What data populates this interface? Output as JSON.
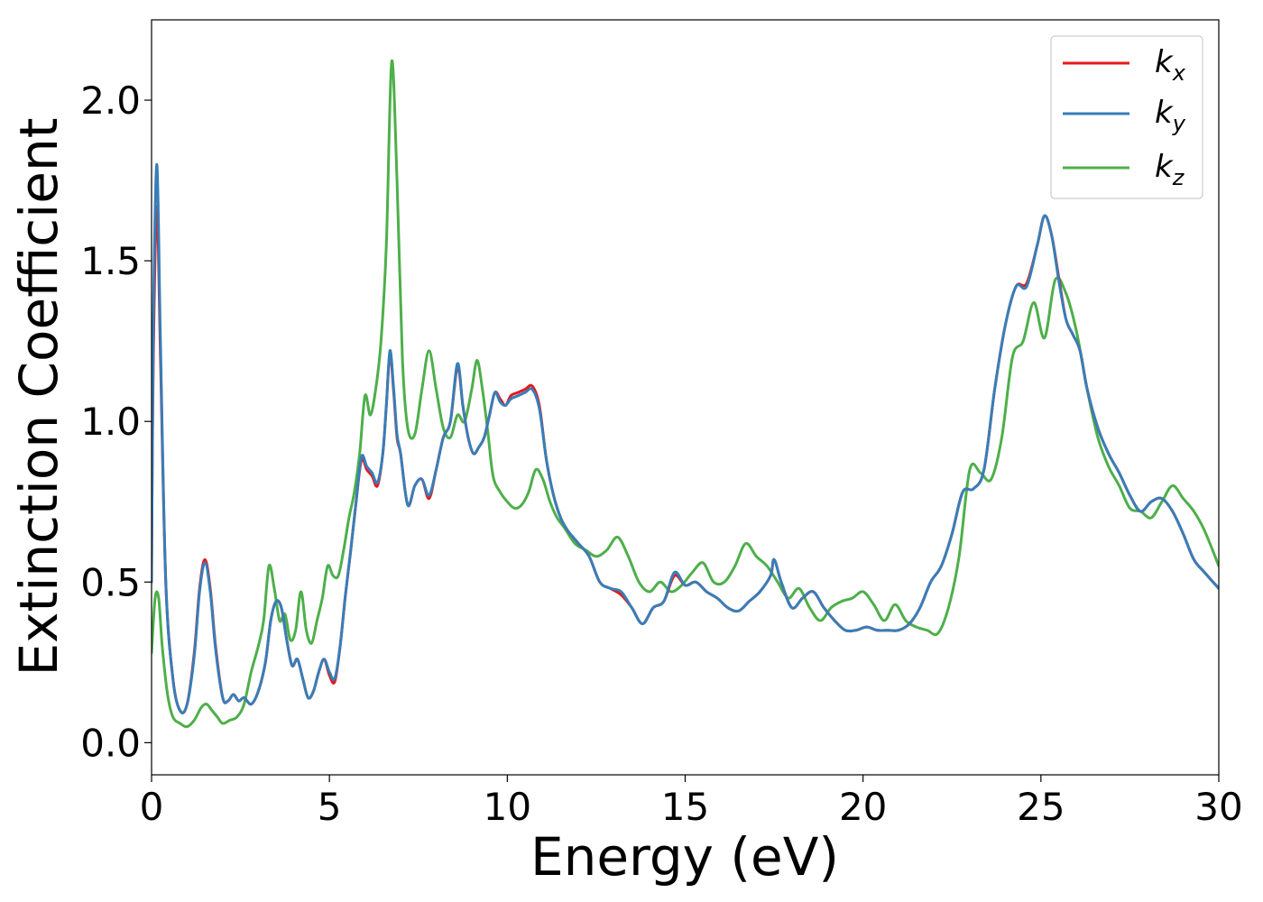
{
  "chart_data": {
    "type": "line",
    "xlabel": "Energy (eV)",
    "ylabel": "Extinction Coefficient",
    "xlim": [
      0,
      30
    ],
    "ylim": [
      -0.1,
      2.25
    ],
    "xticks": [
      0,
      5,
      10,
      15,
      20,
      25,
      30
    ],
    "xtick_labels": [
      "0",
      "5",
      "10",
      "15",
      "20",
      "25",
      "30"
    ],
    "yticks": [
      0.0,
      0.5,
      1.0,
      1.5,
      2.0
    ],
    "ytick_labels": [
      "0.0",
      "0.5",
      "1.0",
      "1.5",
      "2.0"
    ],
    "grid": false,
    "legend_position": "top-right",
    "series": [
      {
        "name": "k_x",
        "label_main": "k",
        "label_sub": "x",
        "color": "#e41a1c",
        "x": [
          0,
          0.05,
          0.15,
          0.25,
          0.4,
          0.6,
          0.8,
          1.0,
          1.2,
          1.35,
          1.5,
          1.65,
          1.8,
          2.0,
          2.15,
          2.3,
          2.45,
          2.6,
          2.8,
          3.0,
          3.2,
          3.35,
          3.5,
          3.65,
          3.8,
          3.95,
          4.1,
          4.25,
          4.4,
          4.55,
          4.7,
          4.85,
          5.0,
          5.15,
          5.3,
          5.45,
          5.6,
          5.75,
          5.9,
          6.05,
          6.2,
          6.35,
          6.5,
          6.6,
          6.7,
          6.8,
          6.9,
          7.0,
          7.2,
          7.4,
          7.6,
          7.8,
          8.0,
          8.2,
          8.4,
          8.6,
          8.75,
          8.9,
          9.05,
          9.2,
          9.35,
          9.5,
          9.65,
          9.8,
          9.95,
          10.1,
          10.3,
          10.5,
          10.7,
          10.9,
          11.1,
          11.3,
          11.5,
          11.7,
          12.0,
          12.3,
          12.6,
          12.9,
          13.2,
          13.5,
          13.8,
          14.1,
          14.4,
          14.7,
          15.0,
          15.3,
          15.6,
          15.9,
          16.2,
          16.5,
          16.8,
          17.1,
          17.4,
          17.5,
          17.7,
          18.0,
          18.3,
          18.6,
          18.9,
          19.2,
          19.5,
          19.8,
          20.1,
          20.4,
          20.7,
          21.0,
          21.3,
          21.6,
          21.9,
          22.2,
          22.5,
          22.8,
          23.1,
          23.4,
          23.7,
          24.0,
          24.3,
          24.6,
          24.9,
          25.1,
          25.3,
          25.5,
          25.7,
          25.9,
          26.1,
          26.3,
          26.6,
          26.9,
          27.2,
          27.5,
          27.8,
          28.1,
          28.4,
          28.7,
          29.0,
          29.3,
          29.6,
          30.0
        ],
        "y": [
          0.55,
          1.2,
          1.67,
          1.2,
          0.5,
          0.2,
          0.1,
          0.12,
          0.28,
          0.48,
          0.57,
          0.48,
          0.3,
          0.14,
          0.13,
          0.15,
          0.13,
          0.14,
          0.12,
          0.16,
          0.25,
          0.38,
          0.44,
          0.42,
          0.32,
          0.24,
          0.26,
          0.2,
          0.14,
          0.16,
          0.22,
          0.26,
          0.21,
          0.19,
          0.3,
          0.46,
          0.6,
          0.75,
          0.88,
          0.85,
          0.83,
          0.8,
          0.9,
          1.05,
          1.21,
          1.1,
          0.95,
          0.9,
          0.74,
          0.8,
          0.82,
          0.76,
          0.85,
          0.95,
          1.0,
          1.17,
          1.05,
          0.95,
          0.9,
          0.92,
          0.95,
          1.02,
          1.09,
          1.07,
          1.05,
          1.08,
          1.09,
          1.1,
          1.11,
          1.05,
          0.88,
          0.77,
          0.7,
          0.66,
          0.62,
          0.58,
          0.5,
          0.48,
          0.46,
          0.42,
          0.37,
          0.42,
          0.44,
          0.52,
          0.49,
          0.5,
          0.47,
          0.45,
          0.42,
          0.41,
          0.44,
          0.47,
          0.52,
          0.57,
          0.5,
          0.42,
          0.45,
          0.47,
          0.42,
          0.38,
          0.35,
          0.35,
          0.36,
          0.35,
          0.35,
          0.35,
          0.37,
          0.42,
          0.5,
          0.55,
          0.65,
          0.78,
          0.79,
          0.85,
          1.1,
          1.3,
          1.42,
          1.43,
          1.55,
          1.64,
          1.58,
          1.45,
          1.32,
          1.27,
          1.22,
          1.1,
          0.98,
          0.9,
          0.84,
          0.77,
          0.72,
          0.75,
          0.76,
          0.72,
          0.65,
          0.57,
          0.53,
          0.48
        ]
      },
      {
        "name": "k_y",
        "label_main": "k",
        "label_sub": "y",
        "color": "#377eb8",
        "x": [
          0,
          0.05,
          0.15,
          0.25,
          0.4,
          0.6,
          0.8,
          1.0,
          1.2,
          1.35,
          1.5,
          1.65,
          1.8,
          2.0,
          2.15,
          2.3,
          2.45,
          2.6,
          2.8,
          3.0,
          3.2,
          3.35,
          3.5,
          3.65,
          3.8,
          3.95,
          4.1,
          4.25,
          4.4,
          4.55,
          4.7,
          4.85,
          5.0,
          5.15,
          5.3,
          5.45,
          5.6,
          5.75,
          5.9,
          6.05,
          6.2,
          6.35,
          6.5,
          6.6,
          6.7,
          6.8,
          6.9,
          7.0,
          7.2,
          7.4,
          7.6,
          7.8,
          8.0,
          8.2,
          8.4,
          8.6,
          8.75,
          8.9,
          9.05,
          9.2,
          9.35,
          9.5,
          9.65,
          9.8,
          9.95,
          10.1,
          10.3,
          10.5,
          10.7,
          10.9,
          11.1,
          11.3,
          11.5,
          11.7,
          12.0,
          12.3,
          12.6,
          12.9,
          13.2,
          13.5,
          13.8,
          14.1,
          14.4,
          14.7,
          15.0,
          15.3,
          15.6,
          15.9,
          16.2,
          16.5,
          16.8,
          17.1,
          17.4,
          17.5,
          17.7,
          18.0,
          18.3,
          18.6,
          18.9,
          19.2,
          19.5,
          19.8,
          20.1,
          20.4,
          20.7,
          21.0,
          21.3,
          21.6,
          21.9,
          22.2,
          22.5,
          22.8,
          23.1,
          23.4,
          23.7,
          24.0,
          24.3,
          24.6,
          24.9,
          25.1,
          25.3,
          25.5,
          25.7,
          25.9,
          26.1,
          26.3,
          26.6,
          26.9,
          27.2,
          27.5,
          27.8,
          28.1,
          28.4,
          28.7,
          29.0,
          29.3,
          29.6,
          30.0
        ],
        "y": [
          0.5,
          1.3,
          1.8,
          1.25,
          0.5,
          0.2,
          0.1,
          0.12,
          0.27,
          0.47,
          0.56,
          0.47,
          0.29,
          0.14,
          0.13,
          0.15,
          0.13,
          0.14,
          0.12,
          0.16,
          0.25,
          0.38,
          0.44,
          0.42,
          0.32,
          0.24,
          0.26,
          0.2,
          0.14,
          0.16,
          0.22,
          0.26,
          0.22,
          0.2,
          0.3,
          0.46,
          0.6,
          0.75,
          0.89,
          0.86,
          0.84,
          0.81,
          0.9,
          1.05,
          1.22,
          1.11,
          0.96,
          0.9,
          0.74,
          0.8,
          0.82,
          0.77,
          0.85,
          0.95,
          1.0,
          1.18,
          1.05,
          0.95,
          0.9,
          0.92,
          0.95,
          1.02,
          1.09,
          1.06,
          1.05,
          1.07,
          1.08,
          1.09,
          1.1,
          1.04,
          0.88,
          0.77,
          0.7,
          0.66,
          0.62,
          0.58,
          0.5,
          0.48,
          0.47,
          0.42,
          0.37,
          0.42,
          0.44,
          0.53,
          0.49,
          0.5,
          0.47,
          0.45,
          0.42,
          0.41,
          0.44,
          0.47,
          0.52,
          0.57,
          0.5,
          0.42,
          0.45,
          0.47,
          0.42,
          0.38,
          0.35,
          0.35,
          0.36,
          0.35,
          0.35,
          0.35,
          0.37,
          0.42,
          0.5,
          0.55,
          0.65,
          0.78,
          0.79,
          0.85,
          1.1,
          1.3,
          1.42,
          1.42,
          1.55,
          1.64,
          1.58,
          1.44,
          1.32,
          1.27,
          1.22,
          1.1,
          0.98,
          0.9,
          0.84,
          0.77,
          0.72,
          0.75,
          0.76,
          0.72,
          0.65,
          0.57,
          0.53,
          0.48
        ]
      },
      {
        "name": "k_z",
        "label_main": "k",
        "label_sub": "z",
        "color": "#4daf4a",
        "x": [
          0,
          0.1,
          0.2,
          0.3,
          0.45,
          0.6,
          0.8,
          1.0,
          1.2,
          1.4,
          1.55,
          1.7,
          1.85,
          2.0,
          2.2,
          2.4,
          2.6,
          2.8,
          3.0,
          3.15,
          3.3,
          3.45,
          3.6,
          3.75,
          3.9,
          4.05,
          4.2,
          4.35,
          4.5,
          4.65,
          4.8,
          4.95,
          5.1,
          5.25,
          5.4,
          5.55,
          5.7,
          5.85,
          6.0,
          6.15,
          6.3,
          6.45,
          6.6,
          6.75,
          6.9,
          7.05,
          7.2,
          7.4,
          7.6,
          7.8,
          8.0,
          8.2,
          8.4,
          8.6,
          8.8,
          9.0,
          9.15,
          9.3,
          9.45,
          9.6,
          9.8,
          10.0,
          10.2,
          10.4,
          10.6,
          10.8,
          11.0,
          11.2,
          11.4,
          11.6,
          11.9,
          12.2,
          12.5,
          12.8,
          13.1,
          13.4,
          13.7,
          14.0,
          14.3,
          14.6,
          14.9,
          15.2,
          15.5,
          15.8,
          16.1,
          16.4,
          16.7,
          17.0,
          17.3,
          17.6,
          17.9,
          18.2,
          18.5,
          18.8,
          19.1,
          19.4,
          19.7,
          20.0,
          20.3,
          20.6,
          20.9,
          21.2,
          21.5,
          21.8,
          22.1,
          22.4,
          22.7,
          23.0,
          23.3,
          23.6,
          23.9,
          24.2,
          24.5,
          24.8,
          25.1,
          25.4,
          25.7,
          26.0,
          26.3,
          26.6,
          26.9,
          27.2,
          27.5,
          27.8,
          28.1,
          28.4,
          28.7,
          29.0,
          29.3,
          29.6,
          30.0
        ],
        "y": [
          0.28,
          0.45,
          0.45,
          0.3,
          0.15,
          0.08,
          0.06,
          0.05,
          0.07,
          0.11,
          0.12,
          0.1,
          0.08,
          0.06,
          0.07,
          0.08,
          0.12,
          0.22,
          0.3,
          0.38,
          0.55,
          0.48,
          0.38,
          0.4,
          0.32,
          0.35,
          0.47,
          0.35,
          0.31,
          0.38,
          0.45,
          0.55,
          0.52,
          0.52,
          0.6,
          0.7,
          0.78,
          0.9,
          1.08,
          1.02,
          1.1,
          1.25,
          1.55,
          2.12,
          1.75,
          1.2,
          0.98,
          0.96,
          1.1,
          1.22,
          1.1,
          0.98,
          0.95,
          1.02,
          1.0,
          1.1,
          1.19,
          1.1,
          0.97,
          0.83,
          0.78,
          0.75,
          0.73,
          0.74,
          0.78,
          0.85,
          0.82,
          0.75,
          0.7,
          0.67,
          0.62,
          0.6,
          0.58,
          0.6,
          0.64,
          0.58,
          0.5,
          0.47,
          0.5,
          0.47,
          0.49,
          0.53,
          0.56,
          0.5,
          0.5,
          0.55,
          0.62,
          0.58,
          0.55,
          0.5,
          0.45,
          0.48,
          0.42,
          0.38,
          0.42,
          0.44,
          0.45,
          0.47,
          0.43,
          0.38,
          0.43,
          0.38,
          0.36,
          0.35,
          0.34,
          0.42,
          0.58,
          0.85,
          0.84,
          0.82,
          0.95,
          1.2,
          1.25,
          1.37,
          1.26,
          1.44,
          1.4,
          1.28,
          1.1,
          0.95,
          0.86,
          0.8,
          0.73,
          0.72,
          0.7,
          0.75,
          0.8,
          0.76,
          0.72,
          0.66,
          0.55
        ]
      }
    ]
  }
}
